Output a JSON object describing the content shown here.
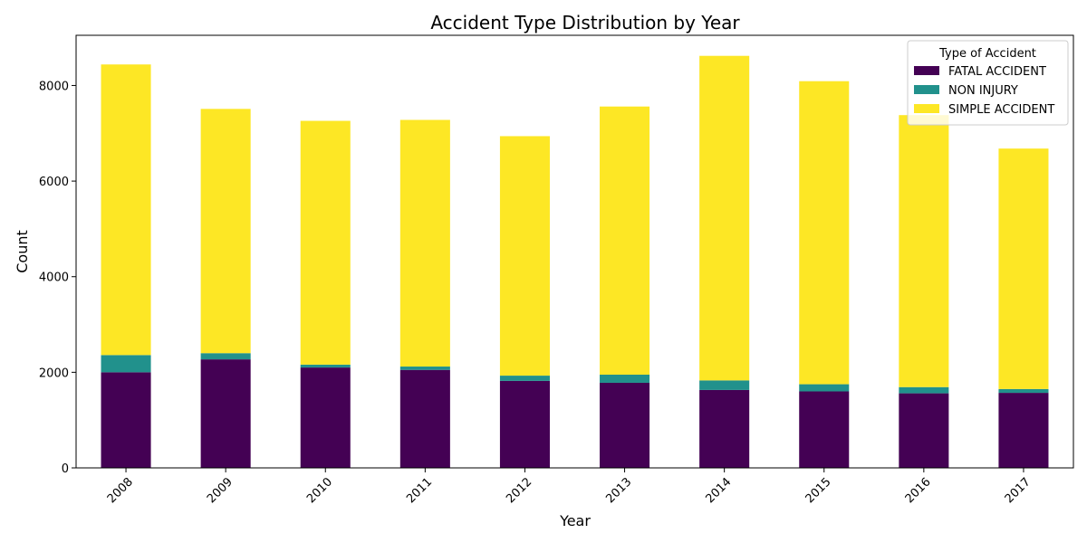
{
  "chart_data": {
    "type": "bar",
    "stacked": true,
    "title": "Accident Type Distribution by Year",
    "xlabel": "Year",
    "ylabel": "Count",
    "categories": [
      "2008",
      "2009",
      "2010",
      "2011",
      "2012",
      "2013",
      "2014",
      "2015",
      "2016",
      "2017"
    ],
    "ylim": [
      0,
      9050
    ],
    "yticks": [
      "0",
      "2000",
      "4000",
      "6000",
      "8000"
    ],
    "ytick_values": [
      0,
      2000,
      4000,
      6000,
      8000
    ],
    "grid": false,
    "legend": {
      "title": "Type of Accident",
      "placement": "top-right"
    },
    "series": [
      {
        "name": "FATAL ACCIDENT",
        "color": "#440154",
        "values": [
          2000,
          2270,
          2100,
          2050,
          1820,
          1780,
          1630,
          1600,
          1560,
          1570
        ]
      },
      {
        "name": "NON INJURY",
        "color": "#21918c",
        "values": [
          360,
          130,
          60,
          70,
          110,
          170,
          200,
          150,
          130,
          80
        ]
      },
      {
        "name": "SIMPLE ACCIDENT",
        "color": "#fde725",
        "values": [
          6080,
          5110,
          5100,
          5160,
          5010,
          5610,
          6790,
          6340,
          5690,
          5030
        ]
      }
    ]
  }
}
